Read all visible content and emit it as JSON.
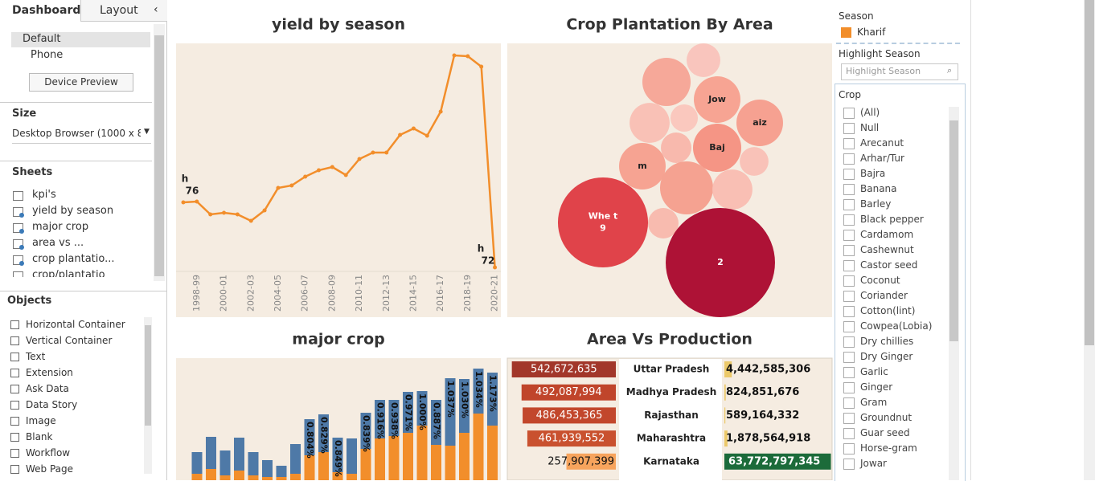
{
  "sidebar": {
    "tabs": [
      "Dashboard",
      "Layout"
    ],
    "devices": [
      "Default",
      "Phone"
    ],
    "device_preview": "Device Preview",
    "size_title": "Size",
    "size_value": "Desktop Browser (1000 x 8...",
    "sheets_title": "Sheets",
    "sheets": [
      "kpi's",
      "yield by season",
      "major crop",
      "area vs ...",
      "crop plantatio...",
      "crop/plantatio"
    ],
    "objects_title": "Objects",
    "objects": [
      "Horizontal Container",
      "Vertical Container",
      "Text",
      "Extension",
      "Ask Data",
      "Data Story",
      "Image",
      "Blank",
      "Workflow",
      "Web Page"
    ]
  },
  "filters": {
    "season_title": "Season",
    "season_items": [
      {
        "label": "Kharif",
        "color": "#f28e2b"
      }
    ],
    "highlight_title": "Highlight Season",
    "highlight_placeholder": "Highlight Season",
    "crop_title": "Crop",
    "crop_items": [
      "(All)",
      "Null",
      "Arecanut",
      "Arhar/Tur",
      "Bajra",
      "Banana",
      "Barley",
      "Black pepper",
      "Cardamom",
      "Cashewnut",
      "Castor seed",
      "Coconut",
      "Coriander",
      "Cotton(lint)",
      "Cowpea(Lobia)",
      "Dry chillies",
      "Dry Ginger",
      "Garlic",
      "Ginger",
      "Gram",
      "Groundnut",
      "Guar seed",
      "Horse-gram",
      "Jowar"
    ]
  },
  "chart_data": [
    {
      "type": "line",
      "title": "yield by season",
      "categories": [
        null,
        "1998-99",
        null,
        "2000-01",
        null,
        "2002-03",
        null,
        "2004-05",
        null,
        "2006-07",
        null,
        "2008-09",
        null,
        "2010-11",
        null,
        "2012-13",
        null,
        "2014-15",
        null,
        "2016-17",
        null,
        "2018-19",
        null,
        "2020-21"
      ],
      "values": [
        86,
        87,
        71,
        73,
        71,
        63,
        76,
        104,
        107,
        118,
        126,
        130,
        120,
        140,
        148,
        148,
        170,
        178,
        169,
        199,
        269,
        268,
        255,
        5
      ],
      "color": "#f28e2b",
      "ylim": [
        0,
        284
      ],
      "annotations": [
        "h",
        "76",
        "h",
        "72"
      ]
    },
    {
      "type": "bubble",
      "title": "Crop Plantation By Area",
      "values": [
        44,
        90,
        84,
        84,
        62,
        29,
        90,
        36,
        32,
        84,
        109,
        62,
        36,
        314,
        462
      ],
      "colors": [
        "#f9c5bd",
        "#f6a899",
        "#f7a493",
        "#f6a191",
        "#f9c1b6",
        "#fac8be",
        "#f59585",
        "#f8b9ad",
        "#f9c2b8",
        "#f6a392",
        "#f5a291",
        "#f9bfb4",
        "#f8bbaf",
        "#e0434a",
        "#ae1236"
      ],
      "labels": [
        [],
        [],
        [
          "Jow"
        ],
        [
          "aiz"
        ],
        [],
        [],
        [
          "Baj"
        ],
        [],
        [],
        [
          "m"
        ],
        [],
        [],
        [],
        [
          "Whe t",
          "9"
        ],
        [
          "2"
        ]
      ]
    },
    {
      "type": "stacked_bar",
      "title": "major crop",
      "series": [
        {
          "color": "#f28e2b",
          "values": [
            8,
            14,
            6,
            12,
            6,
            4,
            4,
            8,
            31,
            35,
            10,
            8,
            39,
            52,
            55,
            59,
            68,
            44,
            43,
            59,
            83,
            68
          ]
        },
        {
          "color": "#4e79a7",
          "values": [
            27,
            40,
            31,
            41,
            29,
            21,
            14,
            37,
            45,
            47,
            43,
            44,
            45,
            48,
            45,
            51,
            43,
            56,
            84,
            67,
            56,
            66
          ]
        }
      ],
      "bar_labels": [
        null,
        null,
        null,
        null,
        null,
        null,
        null,
        null,
        "0.804%",
        "0.829%",
        "0.849%",
        null,
        "0.839%",
        "0.916%",
        "0.938%",
        "0.971%",
        "1.000%",
        "0.887%",
        "1.037%",
        "1.030%",
        "1.034%",
        "1.173%"
      ],
      "ylim": [
        0,
        150
      ]
    },
    {
      "type": "bar_table",
      "title": "Area Vs Production",
      "categories": [
        "Uttar Pradesh",
        "Madhya Pradesh",
        "Rajasthan",
        "Maharashtra",
        "Karnataka"
      ],
      "series": [
        {
          "values": [
            542672635,
            492087994,
            486453365,
            461939552,
            257907399
          ],
          "value_labels": [
            "542,672,635",
            "492,087,994",
            "486,453,365",
            "461,939,552",
            "257,907,399"
          ],
          "colors": [
            "#a2372a",
            "#c0452b",
            "#c2472c",
            "#c9512f",
            "#f7a45d"
          ]
        },
        {
          "values": [
            4442585306,
            824851676,
            589164332,
            1878564918,
            63772797345
          ],
          "value_labels": [
            "4,442,585,306",
            "824,851,676",
            "589,164,332",
            "1,878,564,918",
            "63,772,797,345"
          ],
          "colors": [
            "#ecc96a",
            "#ecc96a",
            "#ecc96a",
            "#ecc96a",
            "#1c6b3a"
          ]
        }
      ],
      "xlim": [
        0,
        600000000
      ],
      "x2lim": [
        0,
        64000000000
      ]
    }
  ]
}
